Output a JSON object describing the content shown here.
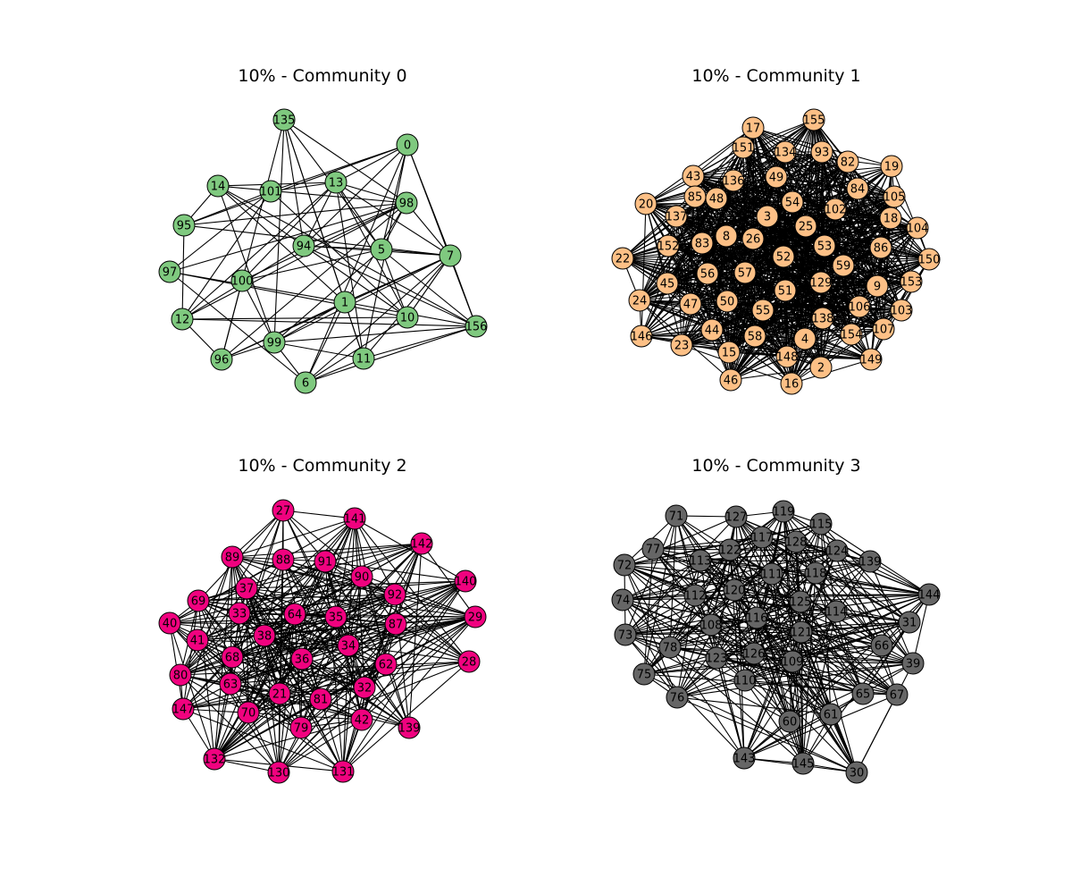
{
  "panels": [
    {
      "title": "10% - Community 0",
      "color": "#7fc97f",
      "nodes": [
        "135",
        "0",
        "14",
        "101",
        "13",
        "98",
        "95",
        "94",
        "5",
        "7",
        "97",
        "100",
        "1",
        "12",
        "10",
        "156",
        "99",
        "96",
        "11",
        "6"
      ]
    },
    {
      "title": "10% - Community 1",
      "color": "#fdc086",
      "nodes": [
        "17",
        "155",
        "151",
        "134",
        "93",
        "82",
        "19",
        "43",
        "136",
        "49",
        "84",
        "105",
        "85",
        "48",
        "54",
        "102",
        "20",
        "137",
        "3",
        "25",
        "18",
        "104",
        "152",
        "83",
        "8",
        "26",
        "53",
        "86",
        "22",
        "56",
        "57",
        "52",
        "59",
        "150",
        "45",
        "129",
        "153",
        "9",
        "24",
        "47",
        "50",
        "51",
        "106",
        "103",
        "55",
        "138",
        "107",
        "146",
        "44",
        "58",
        "4",
        "154",
        "23",
        "15",
        "148",
        "149",
        "2",
        "46",
        "16"
      ]
    },
    {
      "title": "10% - Community 2",
      "color": "#f0027f",
      "nodes": [
        "27",
        "141",
        "142",
        "89",
        "88",
        "91",
        "90",
        "140",
        "37",
        "92",
        "69",
        "64",
        "35",
        "33",
        "29",
        "87",
        "40",
        "38",
        "41",
        "34",
        "68",
        "36",
        "62",
        "28",
        "80",
        "63",
        "21",
        "81",
        "32",
        "147",
        "70",
        "42",
        "79",
        "139",
        "132",
        "130",
        "131"
      ]
    },
    {
      "title": "10% - Community 3",
      "color": "#666666",
      "nodes": [
        "71",
        "127",
        "119",
        "115",
        "77",
        "117",
        "128",
        "122",
        "72",
        "113",
        "124",
        "139",
        "111",
        "118",
        "120",
        "112",
        "144",
        "74",
        "125",
        "114",
        "116",
        "108",
        "31",
        "73",
        "121",
        "78",
        "66",
        "123",
        "126",
        "109",
        "39",
        "75",
        "110",
        "76",
        "65",
        "67",
        "60",
        "61",
        "143",
        "145",
        "30"
      ]
    }
  ]
}
